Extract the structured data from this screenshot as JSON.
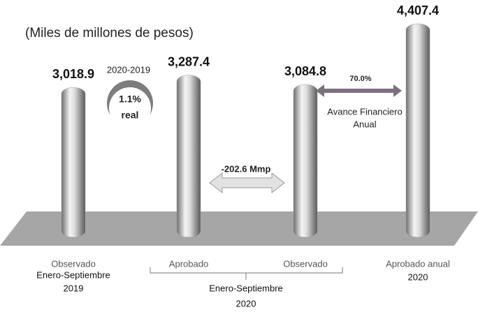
{
  "chart_data": {
    "type": "bar",
    "subtitle": "(Miles de millones de pesos)",
    "categories": [
      "Observado",
      "Aprobado",
      "Observado",
      "Aprobado anual"
    ],
    "values": [
      3018.9,
      3287.4,
      3084.8,
      4407.4
    ],
    "value_labels": [
      "3,018.9",
      "3,287.4",
      "3,084.8",
      "4,407.4"
    ],
    "color": "#9a9a9a",
    "groups": [
      [
        "Enero-Septiembre",
        "2019"
      ],
      [
        "Enero-Septiembre",
        "2020"
      ],
      [
        "2020"
      ]
    ],
    "annotations": {
      "change_label": "2020-2019",
      "change_value": "1.1%",
      "change_unit": "real",
      "difference": "-202.6 Mmp",
      "progress": "70.0%",
      "progress_label": [
        "Avance Financiero",
        "Anual"
      ]
    }
  }
}
